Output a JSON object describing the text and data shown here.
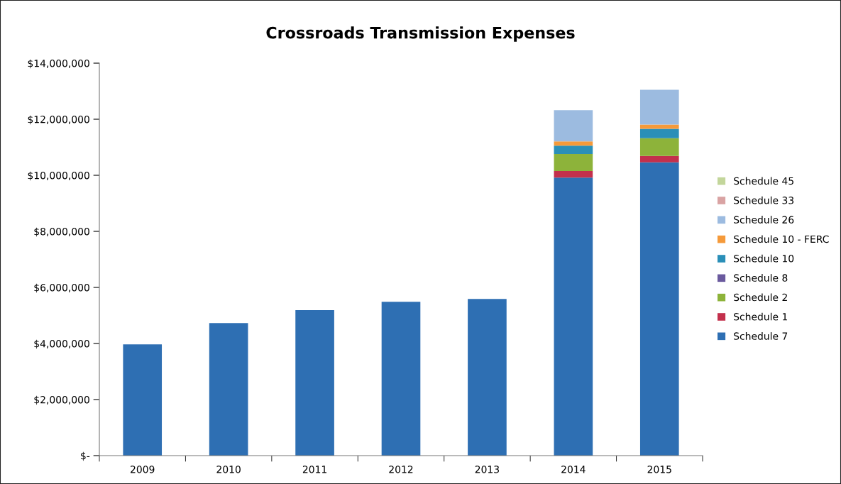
{
  "chart_data": {
    "type": "bar",
    "title": "Crossroads Transmission Expenses",
    "stacked": true,
    "legend": "right",
    "grid": false,
    "categories": [
      "2009",
      "2010",
      "2011",
      "2012",
      "2013",
      "2014",
      "2015"
    ],
    "ylim": [
      0,
      14000000
    ],
    "yticks": [
      {
        "value": 0,
        "label": "$-"
      },
      {
        "value": 2000000,
        "label": "$2,000,000"
      },
      {
        "value": 4000000,
        "label": "$4,000,000"
      },
      {
        "value": 6000000,
        "label": "$6,000,000"
      },
      {
        "value": 8000000,
        "label": "$8,000,000"
      },
      {
        "value": 10000000,
        "label": "$10,000,000"
      },
      {
        "value": 12000000,
        "label": "$12,000,000"
      },
      {
        "value": 14000000,
        "label": "$14,000,000"
      }
    ],
    "series": [
      {
        "name": "Schedule 7",
        "color": "#2e6fb3",
        "values": [
          3970000,
          4730000,
          5190000,
          5490000,
          5590000,
          9920000,
          10460000
        ]
      },
      {
        "name": "Schedule 1",
        "color": "#c3304c",
        "values": [
          null,
          null,
          null,
          null,
          null,
          230000,
          230000
        ]
      },
      {
        "name": "Schedule 2",
        "color": "#8db33a",
        "values": [
          null,
          null,
          null,
          null,
          null,
          610000,
          630000
        ]
      },
      {
        "name": "Schedule 8",
        "color": "#6a5a9e",
        "values": [
          null,
          null,
          null,
          null,
          null,
          0,
          0
        ]
      },
      {
        "name": "Schedule 10",
        "color": "#2a8fb8",
        "values": [
          null,
          null,
          null,
          null,
          null,
          300000,
          340000
        ]
      },
      {
        "name": "Schedule 10 - FERC",
        "color": "#f59a3a",
        "values": [
          null,
          null,
          null,
          null,
          null,
          150000,
          150000
        ]
      },
      {
        "name": "Schedule 26",
        "color": "#9cbbe0",
        "values": [
          null,
          null,
          null,
          null,
          null,
          1110000,
          1240000
        ]
      },
      {
        "name": "Schedule 33",
        "color": "#d9a3a3",
        "values": [
          null,
          null,
          null,
          null,
          null,
          0,
          0
        ]
      },
      {
        "name": "Schedule 45",
        "color": "#c3d69b",
        "values": [
          null,
          null,
          null,
          null,
          null,
          0,
          0
        ]
      }
    ]
  }
}
